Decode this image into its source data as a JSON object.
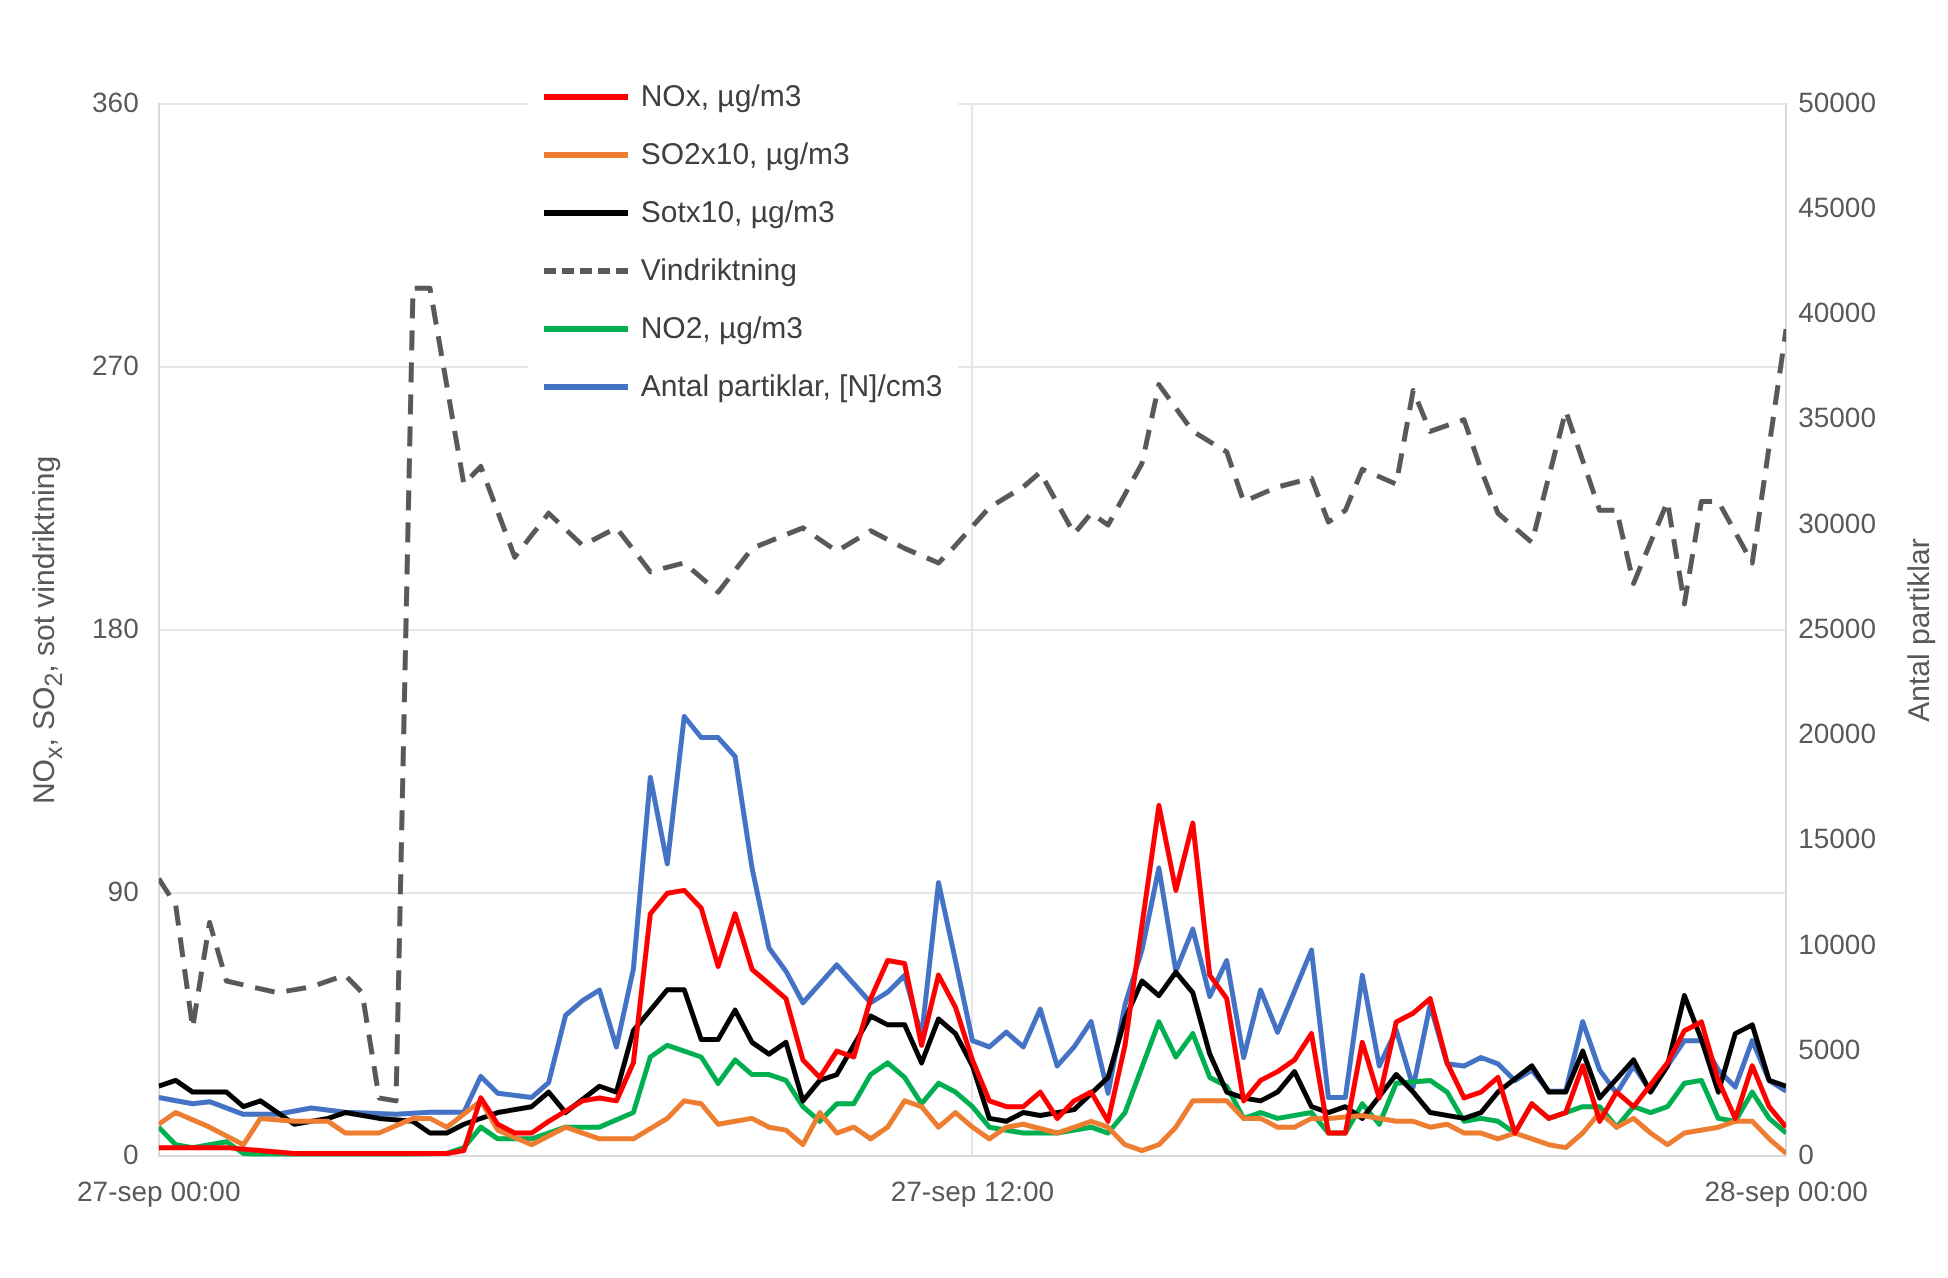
{
  "chart_data": {
    "type": "line",
    "ylabel": "NO$_{x}$, SO$_{2}$, sot vindriktning",
    "y2label": "Antal partiklar",
    "xlim": [
      "--09-27T00:00",
      "--09-28T00:00"
    ],
    "xticks": [
      {
        "value": "--09-27T00:00",
        "label": "27-sep 00:00"
      },
      {
        "value": "--09-27T12:00",
        "label": "27-sep 12:00"
      },
      {
        "value": "--09-28T00:00",
        "label": "28-sep 00:00"
      }
    ],
    "ylim": [
      0,
      360
    ],
    "yticks": [
      0,
      90,
      180,
      270,
      360
    ],
    "y2lim": [
      0,
      50000
    ],
    "y2ticks": [
      0,
      5000,
      10000,
      15000,
      20000,
      25000,
      30000,
      35000,
      40000,
      45000,
      50000
    ],
    "grid": true,
    "legend": "top left",
    "marker": "none",
    "series": [
      {
        "name": "NOx, µg/m3",
        "color": "#ff0000",
        "x": [
          "--09-27T00:00",
          "--09-27T01:00",
          "--09-27T02:00",
          "--09-27T04:15",
          "--09-27T04:30",
          "--09-27T04:45",
          "--09-27T05:00",
          "--09-27T05:15",
          "--09-27T05:30",
          "--09-27T05:45",
          "--09-27T06:15",
          "--09-27T06:30",
          "--09-27T06:45",
          "--09-27T07:00",
          "--09-27T07:15",
          "--09-27T07:30",
          "--09-27T07:45",
          "--09-27T08:00",
          "--09-27T08:15",
          "--09-27T08:30",
          "--09-27T08:45",
          "--09-27T09:15",
          "--09-27T09:30",
          "--09-27T09:45",
          "--09-27T10:00",
          "--09-27T10:15",
          "--09-27T10:30",
          "--09-27T10:45",
          "--09-27T11:00",
          "--09-27T11:15",
          "--09-27T11:30",
          "--09-27T11:45",
          "--09-27T12:00",
          "--09-27T12:15",
          "--09-27T12:30",
          "--09-27T12:45",
          "--09-27T13:00",
          "--09-27T13:15",
          "--09-27T13:30",
          "--09-27T13:45",
          "--09-27T14:00",
          "--09-27T14:15",
          "--09-27T14:45",
          "--09-27T15:00",
          "--09-27T15:15",
          "--09-27T15:30",
          "--09-27T15:45",
          "--09-27T16:00",
          "--09-27T16:15",
          "--09-27T16:30",
          "--09-27T16:45",
          "--09-27T17:00",
          "--09-27T17:15",
          "--09-27T17:30",
          "--09-27T17:45",
          "--09-27T18:00",
          "--09-27T18:15",
          "--09-27T18:30",
          "--09-27T18:45",
          "--09-27T19:00",
          "--09-27T19:15",
          "--09-27T19:30",
          "--09-27T19:45",
          "--09-27T20:00",
          "--09-27T20:15",
          "--09-27T20:30",
          "--09-27T20:45",
          "--09-27T21:00",
          "--09-27T21:15",
          "--09-27T21:30",
          "--09-27T21:45",
          "--09-27T22:15",
          "--09-27T22:30",
          "--09-27T22:45",
          "--09-27T23:00",
          "--09-27T23:15",
          "--09-27T23:30",
          "--09-27T23:45",
          "--09-28T00:00"
        ],
        "values": [
          3,
          3,
          1,
          1,
          2,
          20,
          11,
          8,
          8,
          12,
          19,
          20,
          19,
          32,
          83,
          90,
          91,
          85,
          65,
          83,
          64,
          54,
          33,
          27,
          36,
          34,
          54,
          67,
          66,
          38,
          62,
          51,
          33,
          19,
          17,
          17,
          22,
          13,
          19,
          22,
          12,
          38,
          120,
          91,
          114,
          62,
          54,
          19,
          26,
          29,
          33,
          42,
          8,
          8,
          39,
          20,
          46,
          49,
          54,
          32,
          20,
          22,
          27,
          8,
          18,
          13,
          15,
          31,
          12,
          22,
          17,
          32,
          43,
          46,
          26,
          13,
          31,
          17,
          10
        ]
      },
      {
        "name": "SO2x10, µg/m3",
        "color": "#ed7d31",
        "x": [
          "--09-27T00:00",
          "--09-27T00:15",
          "--09-27T00:45",
          "--09-27T01:15",
          "--09-27T01:30",
          "--09-27T02:00",
          "--09-27T02:30",
          "--09-27T02:45",
          "--09-27T03:15",
          "--09-27T03:45",
          "--09-27T04:00",
          "--09-27T04:15",
          "--09-27T04:45",
          "--09-27T05:00",
          "--09-27T05:30",
          "--09-27T06:00",
          "--09-27T06:30",
          "--09-27T07:00",
          "--09-27T07:30",
          "--09-27T07:45",
          "--09-27T08:00",
          "--09-27T08:15",
          "--09-27T08:30",
          "--09-27T08:45",
          "--09-27T09:00",
          "--09-27T09:15",
          "--09-27T09:30",
          "--09-27T09:45",
          "--09-27T10:00",
          "--09-27T10:15",
          "--09-27T10:30",
          "--09-27T10:45",
          "--09-27T11:00",
          "--09-27T11:15",
          "--09-27T11:30",
          "--09-27T11:45",
          "--09-27T12:00",
          "--09-27T12:15",
          "--09-27T12:30",
          "--09-27T12:45",
          "--09-27T13:15",
          "--09-27T13:45",
          "--09-27T14:00",
          "--09-27T14:15",
          "--09-27T14:30",
          "--09-27T14:45",
          "--09-27T15:00",
          "--09-27T15:15",
          "--09-27T15:30",
          "--09-27T15:45",
          "--09-27T16:00",
          "--09-27T16:15",
          "--09-27T16:30",
          "--09-27T16:45",
          "--09-27T17:00",
          "--09-27T17:15",
          "--09-27T17:45",
          "--09-27T18:15",
          "--09-27T18:30",
          "--09-27T18:45",
          "--09-27T19:00",
          "--09-27T19:15",
          "--09-27T19:30",
          "--09-27T19:45",
          "--09-27T20:00",
          "--09-27T20:30",
          "--09-27T20:45",
          "--09-27T21:00",
          "--09-27T21:15",
          "--09-27T21:30",
          "--09-27T21:45",
          "--09-27T22:00",
          "--09-27T22:15",
          "--09-27T22:30",
          "--09-27T23:00",
          "--09-27T23:15",
          "--09-27T23:30",
          "--09-27T23:45",
          "--09-28T00:00"
        ],
        "values": [
          11,
          15,
          10,
          4,
          13,
          12,
          12,
          8,
          8,
          13,
          13,
          10,
          19,
          9,
          4,
          10,
          6,
          6,
          13,
          19,
          18,
          11,
          12,
          13,
          10,
          9,
          4,
          15,
          8,
          10,
          6,
          10,
          19,
          17,
          10,
          15,
          10,
          6,
          10,
          11,
          8,
          12,
          10,
          4,
          2,
          4,
          10,
          19,
          19,
          19,
          13,
          13,
          10,
          10,
          13,
          13,
          14,
          12,
          12,
          10,
          11,
          8,
          8,
          6,
          8,
          4,
          3,
          8,
          15,
          10,
          13,
          8,
          4,
          8,
          10,
          12,
          12,
          6,
          1
        ]
      },
      {
        "name": "Sotx10, µg/m3",
        "color": "#000000",
        "x": [
          "--09-27T00:00",
          "--09-27T00:15",
          "--09-27T00:30",
          "--09-27T01:00",
          "--09-27T01:15",
          "--09-27T01:30",
          "--09-27T02:00",
          "--09-27T02:30",
          "--09-27T02:45",
          "--09-27T03:15",
          "--09-27T03:45",
          "--09-27T04:00",
          "--09-27T04:15",
          "--09-27T04:30",
          "--09-27T05:00",
          "--09-27T05:30",
          "--09-27T05:45",
          "--09-27T06:00",
          "--09-27T06:30",
          "--09-27T06:45",
          "--09-27T07:00",
          "--09-27T07:30",
          "--09-27T07:45",
          "--09-27T08:00",
          "--09-27T08:15",
          "--09-27T08:30",
          "--09-27T08:45",
          "--09-27T09:00",
          "--09-27T09:15",
          "--09-27T09:30",
          "--09-27T09:45",
          "--09-27T10:00",
          "--09-27T10:30",
          "--09-27T10:45",
          "--09-27T11:00",
          "--09-27T11:15",
          "--09-27T11:30",
          "--09-27T11:45",
          "--09-27T12:00",
          "--09-27T12:15",
          "--09-27T12:30",
          "--09-27T12:45",
          "--09-27T13:00",
          "--09-27T13:30",
          "--09-27T14:00",
          "--09-27T14:15",
          "--09-27T14:30",
          "--09-27T14:45",
          "--09-27T15:00",
          "--09-27T15:15",
          "--09-27T15:30",
          "--09-27T15:45",
          "--09-27T16:00",
          "--09-27T16:15",
          "--09-27T16:30",
          "--09-27T16:45",
          "--09-27T17:00",
          "--09-27T17:15",
          "--09-27T17:30",
          "--09-27T17:45",
          "--09-27T18:15",
          "--09-27T18:30",
          "--09-27T18:45",
          "--09-27T19:15",
          "--09-27T19:30",
          "--09-27T19:45",
          "--09-27T20:15",
          "--09-27T20:30",
          "--09-27T20:45",
          "--09-27T21:00",
          "--09-27T21:15",
          "--09-27T21:45",
          "--09-27T22:00",
          "--09-27T22:15",
          "--09-27T22:30",
          "--09-27T22:45",
          "--09-27T23:00",
          "--09-27T23:15",
          "--09-27T23:30",
          "--09-27T23:45",
          "--09-28T00:00"
        ],
        "values": [
          24,
          26,
          22,
          22,
          17,
          19,
          11,
          13,
          15,
          13,
          12,
          8,
          8,
          11,
          15,
          17,
          22,
          15,
          24,
          22,
          43,
          57,
          57,
          40,
          40,
          50,
          39,
          35,
          39,
          19,
          26,
          28,
          48,
          45,
          45,
          32,
          47,
          42,
          31,
          13,
          12,
          15,
          14,
          16,
          27,
          47,
          60,
          55,
          63,
          56,
          35,
          22,
          20,
          19,
          22,
          29,
          17,
          15,
          17,
          13,
          28,
          22,
          15,
          13,
          15,
          22,
          31,
          22,
          22,
          36,
          20,
          33,
          22,
          31,
          55,
          40,
          22,
          42,
          45,
          26,
          24
        ]
      },
      {
        "name": "Vindriktning",
        "color": "#595959",
        "line_style": "dashed",
        "x": [
          "--09-27T00:00",
          "--09-27T00:15",
          "--09-27T00:30",
          "--09-27T00:45",
          "--09-27T01:00",
          "--09-27T01:45",
          "--09-27T02:15",
          "--09-27T02:45",
          "--09-27T03:00",
          "--09-27T03:15",
          "--09-27T03:30",
          "--09-27T03:45",
          "--09-27T04:00",
          "--09-27T04:30",
          "--09-27T04:45",
          "--09-27T05:15",
          "--09-27T05:45",
          "--09-27T06:15",
          "--09-27T06:45",
          "--09-27T07:15",
          "--09-27T07:45",
          "--09-27T08:15",
          "--09-27T08:45",
          "--09-27T09:30",
          "--09-27T10:00",
          "--09-27T10:30",
          "--09-27T11:00",
          "--09-27T11:30",
          "--09-27T11:45",
          "--09-27T12:15",
          "--09-27T12:45",
          "--09-27T13:00",
          "--09-27T13:30",
          "--09-27T13:45",
          "--09-27T14:00",
          "--09-27T14:30",
          "--09-27T14:45",
          "--09-27T15:15",
          "--09-27T15:45",
          "--09-27T16:00",
          "--09-27T16:30",
          "--09-27T17:00",
          "--09-27T17:15",
          "--09-27T17:30",
          "--09-27T17:45",
          "--09-27T18:15",
          "--09-27T18:30",
          "--09-27T18:45",
          "--09-27T19:15",
          "--09-27T19:30",
          "--09-27T19:45",
          "--09-27T20:15",
          "--09-27T20:45",
          "--09-27T21:15",
          "--09-27T21:30",
          "--09-27T21:45",
          "--09-27T22:15",
          "--09-27T22:30",
          "--09-27T22:45",
          "--09-27T23:00",
          "--09-27T23:30",
          "--09-28T00:00"
        ],
        "values": [
          95,
          86,
          44,
          80,
          60,
          56,
          58,
          62,
          56,
          20,
          19,
          297,
          297,
          230,
          236,
          205,
          220,
          209,
          215,
          200,
          203,
          193,
          208,
          215,
          207,
          214,
          208,
          203,
          209,
          222,
          229,
          234,
          213,
          220,
          216,
          237,
          264,
          248,
          241,
          224,
          229,
          232,
          217,
          221,
          235,
          230,
          262,
          248,
          252,
          235,
          220,
          210,
          255,
          221,
          221,
          196,
          224,
          189,
          224,
          224,
          203,
          283
        ]
      },
      {
        "name": "NO2, µg/m3",
        "color": "#00b050",
        "x": [
          "--09-27T00:00",
          "--09-27T00:15",
          "--09-27T00:30",
          "--09-27T01:00",
          "--09-27T01:15",
          "--09-27T01:45",
          "--09-27T02:45",
          "--09-27T04:15",
          "--09-27T04:30",
          "--09-27T04:45",
          "--09-27T05:00",
          "--09-27T05:30",
          "--09-27T06:00",
          "--09-27T06:30",
          "--09-27T07:00",
          "--09-27T07:15",
          "--09-27T07:30",
          "--09-27T07:45",
          "--09-27T08:00",
          "--09-27T08:15",
          "--09-27T08:30",
          "--09-27T08:45",
          "--09-27T09:00",
          "--09-27T09:15",
          "--09-27T09:30",
          "--09-27T09:45",
          "--09-27T10:00",
          "--09-27T10:15",
          "--09-27T10:30",
          "--09-27T10:45",
          "--09-27T11:00",
          "--09-27T11:15",
          "--09-27T11:30",
          "--09-27T11:45",
          "--09-27T12:00",
          "--09-27T12:15",
          "--09-27T12:45",
          "--09-27T13:15",
          "--09-27T13:45",
          "--09-27T14:00",
          "--09-27T14:15",
          "--09-27T14:45",
          "--09-27T15:00",
          "--09-27T15:15",
          "--09-27T15:30",
          "--09-27T15:45",
          "--09-27T16:00",
          "--09-27T16:15",
          "--09-27T16:30",
          "--09-27T17:00",
          "--09-27T17:15",
          "--09-27T17:30",
          "--09-27T17:45",
          "--09-27T18:00",
          "--09-27T18:15",
          "--09-27T18:45",
          "--09-27T19:00",
          "--09-27T19:15",
          "--09-27T19:30",
          "--09-27T19:45",
          "--09-27T20:00",
          "--09-27T20:15",
          "--09-27T20:30",
          "--09-27T20:45",
          "--09-27T21:00",
          "--09-27T21:15",
          "--09-27T21:30",
          "--09-27T21:45",
          "--09-27T22:00",
          "--09-27T22:15",
          "--09-27T22:30",
          "--09-27T22:45",
          "--09-27T23:00",
          "--09-27T23:15",
          "--09-27T23:30",
          "--09-27T23:45",
          "--09-28T00:00"
        ],
        "values": [
          10,
          4,
          3,
          5,
          1,
          0,
          0,
          1,
          3,
          10,
          6,
          6,
          10,
          10,
          15,
          34,
          38,
          36,
          34,
          25,
          33,
          28,
          28,
          26,
          17,
          12,
          18,
          18,
          28,
          32,
          27,
          18,
          25,
          22,
          17,
          10,
          8,
          8,
          10,
          8,
          15,
          46,
          34,
          42,
          27,
          24,
          13,
          15,
          13,
          15,
          8,
          8,
          18,
          11,
          25,
          26,
          22,
          12,
          13,
          12,
          8,
          18,
          13,
          15,
          17,
          17,
          10,
          17,
          15,
          17,
          25,
          26,
          13,
          12,
          22,
          13,
          8
        ]
      },
      {
        "name": "Antal partiklar, [N]/cm3",
        "color": "#4472c4",
        "axis": "y2",
        "x": [
          "--09-27T00:00",
          "--09-27T00:30",
          "--09-27T00:45",
          "--09-27T01:15",
          "--09-27T01:45",
          "--09-27T02:15",
          "--09-27T02:45",
          "--09-27T03:30",
          "--09-27T04:00",
          "--09-27T04:30",
          "--09-27T04:45",
          "--09-27T05:00",
          "--09-27T05:30",
          "--09-27T05:45",
          "--09-27T06:00",
          "--09-27T06:15",
          "--09-27T06:30",
          "--09-27T06:45",
          "--09-27T07:00",
          "--09-27T07:15",
          "--09-27T07:30",
          "--09-27T07:45",
          "--09-27T08:00",
          "--09-27T08:15",
          "--09-27T08:30",
          "--09-27T08:45",
          "--09-27T09:00",
          "--09-27T09:15",
          "--09-27T09:30",
          "--09-27T10:00",
          "--09-27T10:30",
          "--09-27T10:45",
          "--09-27T11:00",
          "--09-27T11:15",
          "--09-27T11:30",
          "--09-27T11:45",
          "--09-27T12:00",
          "--09-27T12:15",
          "--09-27T12:30",
          "--09-27T12:45",
          "--09-27T13:00",
          "--09-27T13:15",
          "--09-27T13:30",
          "--09-27T13:45",
          "--09-27T14:00",
          "--09-27T14:15",
          "--09-27T14:30",
          "--09-27T14:45",
          "--09-27T15:00",
          "--09-27T15:15",
          "--09-27T15:30",
          "--09-27T15:45",
          "--09-27T16:00",
          "--09-27T16:15",
          "--09-27T16:30",
          "--09-27T17:00",
          "--09-27T17:15",
          "--09-27T17:30",
          "--09-27T17:45",
          "--09-27T18:00",
          "--09-27T18:15",
          "--09-27T18:30",
          "--09-27T18:45",
          "--09-27T19:00",
          "--09-27T19:15",
          "--09-27T19:30",
          "--09-27T19:45",
          "--09-27T20:00",
          "--09-27T20:15",
          "--09-27T20:30",
          "--09-27T20:45",
          "--09-27T21:00",
          "--09-27T21:15",
          "--09-27T21:30",
          "--09-27T21:45",
          "--09-27T22:00",
          "--09-27T22:15",
          "--09-27T22:30",
          "--09-27T22:45",
          "--09-27T23:00",
          "--09-27T23:15",
          "--09-27T23:30",
          "--09-27T23:45",
          "--09-28T00:00"
        ],
        "values": [
          2800,
          2500,
          2600,
          2000,
          2000,
          2300,
          2100,
          2000,
          2100,
          2100,
          3800,
          3000,
          2800,
          3500,
          6700,
          7400,
          7900,
          5200,
          8900,
          18000,
          13900,
          20900,
          19900,
          19900,
          19000,
          13700,
          9900,
          8800,
          7300,
          9100,
          7300,
          7800,
          8600,
          5700,
          13000,
          9300,
          5500,
          5200,
          5900,
          5200,
          7000,
          4300,
          5200,
          6400,
          3000,
          7200,
          9800,
          13700,
          8800,
          10800,
          7600,
          9300,
          4700,
          7900,
          5900,
          9800,
          2800,
          2800,
          8600,
          4300,
          6000,
          3300,
          7200,
          4400,
          4300,
          4700,
          4400,
          3600,
          4100,
          3100,
          3100,
          6400,
          4100,
          3000,
          4300,
          3100,
          4300,
          5500,
          5500,
          4100,
          3300,
          5500,
          3600,
          3100
        ]
      }
    ]
  }
}
